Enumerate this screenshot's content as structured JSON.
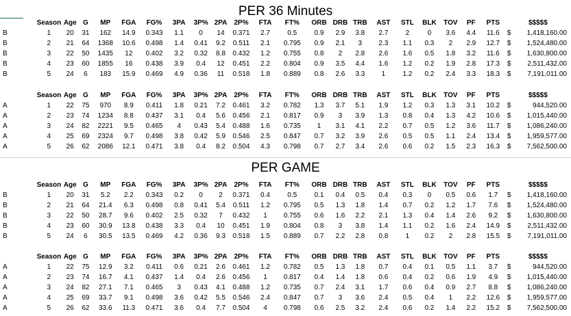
{
  "sections": [
    {
      "title": "PER 36 Minutes",
      "tables": [
        {
          "headers": [
            "Season",
            "Age",
            "G",
            "MP",
            "FGA",
            "FG%",
            "3PA",
            "3P%",
            "2PA",
            "2P%",
            "FTA",
            "FT%",
            "ORB",
            "DRB",
            "TRB",
            "AST",
            "STL",
            "BLK",
            "TOV",
            "PF",
            "PTS",
            "$$$$$"
          ],
          "rows": [
            {
              "grp": "B",
              "cells": [
                "1",
                "20",
                "31",
                "162",
                "14.9",
                "0.343",
                "1.1",
                "0",
                "14",
                "0.371",
                "2.7",
                "0.5",
                "0.9",
                "2.9",
                "3.8",
                "2.7",
                "2",
                "0",
                "3.6",
                "4.4",
                "11.6"
              ],
              "cur": "$",
              "sal": "1,418,160.00"
            },
            {
              "grp": "B",
              "cells": [
                "2",
                "21",
                "64",
                "1368",
                "10.6",
                "0.498",
                "1.4",
                "0.41",
                "9.2",
                "0.511",
                "2.1",
                "0.795",
                "0.9",
                "2.1",
                "3",
                "2.3",
                "1.1",
                "0.3",
                "2",
                "2.9",
                "12.7"
              ],
              "cur": "$",
              "sal": "1,524,480.00"
            },
            {
              "grp": "B",
              "cells": [
                "3",
                "22",
                "50",
                "1435",
                "12",
                "0.402",
                "3.2",
                "0.32",
                "8.8",
                "0.432",
                "1.2",
                "0.755",
                "0.8",
                "2",
                "2.8",
                "2.6",
                "1.6",
                "0.5",
                "1.8",
                "3.2",
                "11.6"
              ],
              "cur": "$",
              "sal": "1,630,800.00"
            },
            {
              "grp": "B",
              "cells": [
                "4",
                "23",
                "60",
                "1855",
                "16",
                "0.438",
                "3.9",
                "0.4",
                "12",
                "0.451",
                "2.2",
                "0.804",
                "0.9",
                "3.5",
                "4.4",
                "1.6",
                "1.2",
                "0.2",
                "1.9",
                "2.8",
                "17.3"
              ],
              "cur": "$",
              "sal": "2,511,432.00"
            },
            {
              "grp": "B",
              "cells": [
                "5",
                "24",
                "6",
                "183",
                "15.9",
                "0.469",
                "4.9",
                "0.36",
                "11",
                "0.518",
                "1.8",
                "0.889",
                "0.8",
                "2.6",
                "3.3",
                "1",
                "1.2",
                "0.2",
                "2.4",
                "3.3",
                "18.3"
              ],
              "cur": "$",
              "sal": "7,191,011.00"
            }
          ]
        },
        {
          "headers": [
            "Season",
            "Age",
            "G",
            "MP",
            "FGA",
            "FG%",
            "3PA",
            "3P%",
            "2PA",
            "2P%",
            "FTA",
            "FT%",
            "ORB",
            "DRB",
            "TRB",
            "AST",
            "STL",
            "BLK",
            "TOV",
            "PF",
            "PTS",
            "$$$$$"
          ],
          "rows": [
            {
              "grp": "A",
              "cells": [
                "1",
                "22",
                "75",
                "970",
                "8.9",
                "0.411",
                "1.8",
                "0.21",
                "7.2",
                "0.461",
                "3.2",
                "0.782",
                "1.3",
                "3.7",
                "5.1",
                "1.9",
                "1.2",
                "0.3",
                "1.3",
                "3.1",
                "10.2"
              ],
              "cur": "$",
              "sal": "944,520.00"
            },
            {
              "grp": "A",
              "cells": [
                "2",
                "23",
                "74",
                "1234",
                "8.8",
                "0.437",
                "3.1",
                "0.4",
                "5.6",
                "0.456",
                "2.1",
                "0.817",
                "0.9",
                "3",
                "3.9",
                "1.3",
                "0.8",
                "0.4",
                "1.3",
                "4.2",
                "10.6"
              ],
              "cur": "$",
              "sal": "1,015,440.00"
            },
            {
              "grp": "A",
              "cells": [
                "3",
                "24",
                "82",
                "2221",
                "9.5",
                "0.465",
                "4",
                "0.43",
                "5.4",
                "0.488",
                "1.6",
                "0.735",
                "1",
                "3.1",
                "4.1",
                "2.2",
                "0.7",
                "0.5",
                "1.2",
                "3.6",
                "11.7"
              ],
              "cur": "$",
              "sal": "1,086,240.00"
            },
            {
              "grp": "A",
              "cells": [
                "4",
                "25",
                "69",
                "2324",
                "9.7",
                "0.498",
                "3.8",
                "0.42",
                "5.9",
                "0.546",
                "2.5",
                "0.847",
                "0.7",
                "3.2",
                "3.9",
                "2.6",
                "0.5",
                "0.5",
                "1.1",
                "2.4",
                "13.4"
              ],
              "cur": "$",
              "sal": "1,959,577.00"
            },
            {
              "grp": "A",
              "cells": [
                "5",
                "26",
                "62",
                "2086",
                "12.1",
                "0.471",
                "3.8",
                "0.4",
                "8.2",
                "0.504",
                "4.3",
                "0.798",
                "0.7",
                "2.7",
                "3.4",
                "2.6",
                "0.6",
                "0.2",
                "1.5",
                "2.3",
                "16.3"
              ],
              "cur": "$",
              "sal": "7,562,500.00"
            }
          ]
        }
      ]
    },
    {
      "title": "PER GAME",
      "tables": [
        {
          "headers": [
            "Season",
            "Age",
            "G",
            "MP",
            "FGA",
            "FG%",
            "3PA",
            "3P%",
            "2PA",
            "2P%",
            "FTA",
            "FT%",
            "ORB",
            "DRB",
            "TRB",
            "AST",
            "STL",
            "BLK",
            "TOV",
            "PF",
            "PTS",
            "$$$$$"
          ],
          "rows": [
            {
              "grp": "B",
              "cells": [
                "1",
                "20",
                "31",
                "5.2",
                "2.2",
                "0.343",
                "0.2",
                "0",
                "2",
                "0.371",
                "0.4",
                "0.5",
                "0.1",
                "0.4",
                "0.5",
                "0.4",
                "0.3",
                "0",
                "0.5",
                "0.6",
                "1.7"
              ],
              "cur": "$",
              "sal": "1,418,160.00"
            },
            {
              "grp": "B",
              "cells": [
                "2",
                "21",
                "64",
                "21.4",
                "6.3",
                "0.498",
                "0.8",
                "0.41",
                "5.4",
                "0.511",
                "1.2",
                "0.795",
                "0.5",
                "1.3",
                "1.8",
                "1.4",
                "0.7",
                "0.2",
                "1.2",
                "1.7",
                "7.6"
              ],
              "cur": "$",
              "sal": "1,524,480.00"
            },
            {
              "grp": "B",
              "cells": [
                "3",
                "22",
                "50",
                "28.7",
                "9.6",
                "0.402",
                "2.5",
                "0.32",
                "7",
                "0.432",
                "1",
                "0.755",
                "0.6",
                "1.6",
                "2.2",
                "2.1",
                "1.3",
                "0.4",
                "1.4",
                "2.6",
                "9.2"
              ],
              "cur": "$",
              "sal": "1,630,800.00"
            },
            {
              "grp": "B",
              "cells": [
                "4",
                "23",
                "60",
                "30.9",
                "13.8",
                "0.438",
                "3.3",
                "0.4",
                "10",
                "0.451",
                "1.9",
                "0.804",
                "0.8",
                "3",
                "3.8",
                "1.4",
                "1.1",
                "0.2",
                "1.6",
                "2.4",
                "14.9"
              ],
              "cur": "$",
              "sal": "2,511,432.00"
            },
            {
              "grp": "B",
              "cells": [
                "5",
                "24",
                "6",
                "30.5",
                "13.5",
                "0.469",
                "4.2",
                "0.36",
                "9.3",
                "0.518",
                "1.5",
                "0.889",
                "0.7",
                "2.2",
                "2.8",
                "0.8",
                "1",
                "0.2",
                "2",
                "2.8",
                "15.5"
              ],
              "cur": "$",
              "sal": "7,191,011.00"
            }
          ]
        },
        {
          "headers": [
            "Season",
            "Age",
            "G",
            "MP",
            "FGA",
            "FG%",
            "3PA",
            "3P%",
            "2PA",
            "2P%",
            "FTA",
            "FT%",
            "ORB",
            "DRB",
            "TRB",
            "AST",
            "STL",
            "BLK",
            "TOV",
            "PF",
            "PTS",
            "$$$$$"
          ],
          "rows": [
            {
              "grp": "A",
              "cells": [
                "1",
                "22",
                "75",
                "12.9",
                "3.2",
                "0.411",
                "0.6",
                "0.21",
                "2.6",
                "0.461",
                "1.2",
                "0.782",
                "0.5",
                "1.3",
                "1.8",
                "0.7",
                "0.4",
                "0.1",
                "0.5",
                "1.1",
                "3.7"
              ],
              "cur": "$",
              "sal": "944,520.00"
            },
            {
              "grp": "A",
              "cells": [
                "2",
                "23",
                "74",
                "16.7",
                "4.1",
                "0.437",
                "1.4",
                "0.4",
                "2.6",
                "0.456",
                "1",
                "0.817",
                "0.4",
                "1.4",
                "1.8",
                "0.6",
                "0.4",
                "0.2",
                "0.6",
                "1.9",
                "4.9"
              ],
              "cur": "$",
              "sal": "1,015,440.00"
            },
            {
              "grp": "A",
              "cells": [
                "3",
                "24",
                "82",
                "27.1",
                "7.1",
                "0.465",
                "3",
                "0.43",
                "4.1",
                "0.488",
                "1.2",
                "0.735",
                "0.7",
                "2.4",
                "3.1",
                "1.7",
                "0.6",
                "0.4",
                "0.9",
                "2.7",
                "8.8"
              ],
              "cur": "$",
              "sal": "1,086,240.00"
            },
            {
              "grp": "A",
              "cells": [
                "4",
                "25",
                "69",
                "33.7",
                "9.1",
                "0.498",
                "3.6",
                "0.42",
                "5.5",
                "0.546",
                "2.4",
                "0.847",
                "0.7",
                "3",
                "3.6",
                "2.4",
                "0.5",
                "0.4",
                "1",
                "2.2",
                "12.6"
              ],
              "cur": "$",
              "sal": "1,959,577.00"
            },
            {
              "grp": "A",
              "cells": [
                "5",
                "26",
                "62",
                "33.6",
                "11.3",
                "0.471",
                "3.6",
                "0.4",
                "7.7",
                "0.504",
                "4",
                "0.798",
                "0.6",
                "2.5",
                "3.2",
                "2.4",
                "0.6",
                "0.2",
                "1.4",
                "2.2",
                "15.2"
              ],
              "cur": "$",
              "sal": "7,562,500.00"
            }
          ]
        }
      ]
    }
  ]
}
